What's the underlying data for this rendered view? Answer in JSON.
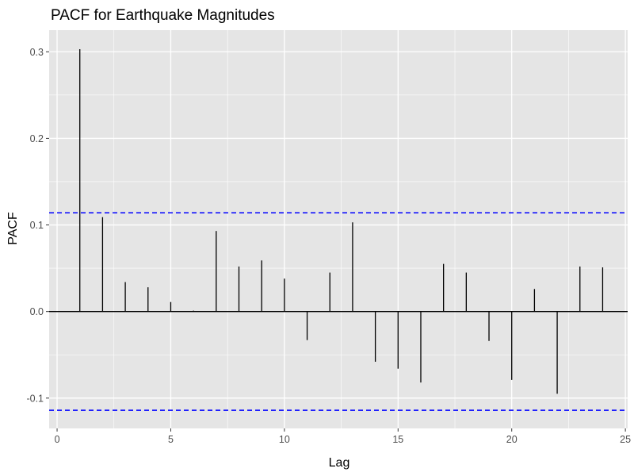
{
  "chart_data": {
    "type": "bar",
    "title": "PACF for Earthquake Magnitudes",
    "xlabel": "Lag",
    "ylabel": "PACF",
    "xlim": [
      -0.35,
      25.1
    ],
    "ylim": [
      -0.135,
      0.325
    ],
    "x_ticks": [
      0,
      5,
      10,
      15,
      20,
      25
    ],
    "y_ticks": [
      -0.1,
      0.0,
      0.1,
      0.2,
      0.3
    ],
    "x_tick_labels": [
      "0",
      "5",
      "10",
      "15",
      "20",
      "25"
    ],
    "y_tick_labels": [
      "-0.1",
      "0.0",
      "0.1",
      "0.2",
      "0.3"
    ],
    "grid": true,
    "lags": [
      1,
      2,
      3,
      4,
      5,
      6,
      7,
      8,
      9,
      10,
      11,
      12,
      13,
      14,
      15,
      16,
      17,
      18,
      19,
      20,
      21,
      22,
      23,
      24
    ],
    "values": [
      0.303,
      0.109,
      0.034,
      0.028,
      0.011,
      0.001,
      0.093,
      0.052,
      0.059,
      0.038,
      -0.033,
      0.045,
      0.103,
      -0.058,
      -0.066,
      -0.082,
      0.055,
      0.045,
      -0.034,
      -0.079,
      0.026,
      -0.095,
      0.052,
      0.051
    ],
    "confidence_bounds": [
      0.114,
      -0.114
    ],
    "colors": {
      "panel": "#e5e5e5",
      "grid": "#ffffff",
      "bars": "#000000",
      "bounds": "#0000ff"
    }
  }
}
